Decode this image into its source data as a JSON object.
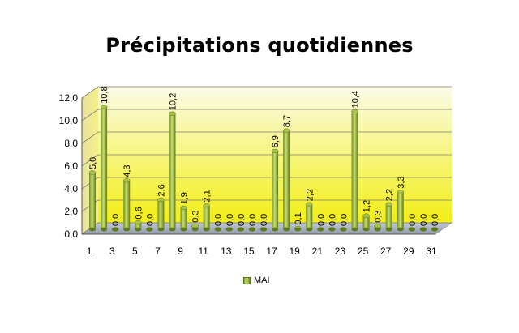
{
  "chart_data": {
    "type": "bar",
    "title": "Précipitations quotidiennes",
    "xlabel": "",
    "ylabel": "",
    "ylim": [
      0,
      12
    ],
    "yticks": [
      "0,0",
      "2,0",
      "4,0",
      "6,0",
      "8,0",
      "10,0",
      "12,0"
    ],
    "grid": true,
    "legend_position": "bottom",
    "categories": [
      "1",
      "2",
      "3",
      "4",
      "5",
      "6",
      "7",
      "8",
      "9",
      "10",
      "11",
      "12",
      "13",
      "14",
      "15",
      "16",
      "17",
      "18",
      "19",
      "20",
      "21",
      "22",
      "23",
      "24",
      "25",
      "26",
      "27",
      "28",
      "29",
      "30",
      "31"
    ],
    "xtick_labels": [
      "1",
      "3",
      "5",
      "7",
      "9",
      "11",
      "13",
      "15",
      "17",
      "19",
      "21",
      "23",
      "25",
      "27",
      "29",
      "31"
    ],
    "series": [
      {
        "name": "MAI",
        "values": [
          5.0,
          10.8,
          0.0,
          4.3,
          0.6,
          0.0,
          2.6,
          10.2,
          1.9,
          0.3,
          2.1,
          0.0,
          0.0,
          0.0,
          0.0,
          0.0,
          6.9,
          8.7,
          0.1,
          2.2,
          0.0,
          0.0,
          0.0,
          10.4,
          1.2,
          0.3,
          2.2,
          3.3,
          0.0,
          0.0,
          0.0
        ],
        "labels": [
          "5,0",
          "10,8",
          "0,0",
          "4,3",
          "0,6",
          "0,0",
          "2,6",
          "10,2",
          "1,9",
          "0,3",
          "2,1",
          "0,0",
          "0,0",
          "0,0",
          "0,0",
          "0,0",
          "6,9",
          "8,7",
          "0,1",
          "2,2",
          "0,0",
          "0,0",
          "0,0",
          "10,4",
          "1,2",
          "0,3",
          "2,2",
          "3,3",
          "0,0",
          "0,0",
          "0,0"
        ]
      }
    ],
    "colors": {
      "bar": "#8fae3a",
      "bar_light": "#c8de6c",
      "bar_dark": "#5f7a1d",
      "wall_top": "#fbfbe8",
      "wall_bottom": "#f2ee14",
      "floor": "#a9b3c2"
    }
  }
}
